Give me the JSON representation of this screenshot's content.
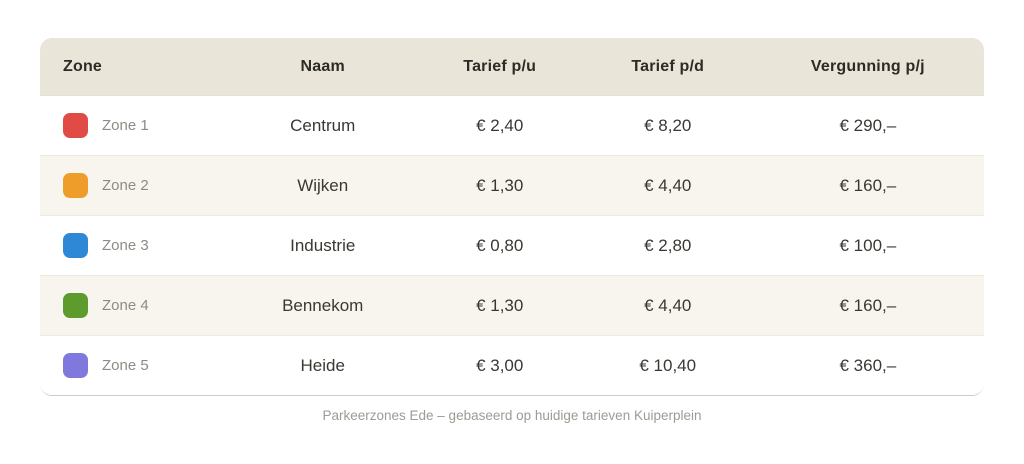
{
  "chart_data": {
    "type": "table",
    "columns": [
      "Zone",
      "Naam",
      "Tarief p/u",
      "Tarief p/d",
      "Vergunning p/j"
    ],
    "rows": [
      {
        "zone": "Zone 1",
        "color": "#e14b45",
        "naam": "Centrum",
        "tarief_pu": "€ 2,40",
        "tarief_pd": "€ 8,20",
        "vergunning_pj": "€ 290,–"
      },
      {
        "zone": "Zone 2",
        "color": "#ee9d2b",
        "naam": "Wijken",
        "tarief_pu": "€ 1,30",
        "tarief_pd": "€ 4,40",
        "vergunning_pj": "€ 160,–"
      },
      {
        "zone": "Zone 3",
        "color": "#2e88d5",
        "naam": "Industrie",
        "tarief_pu": "€ 0,80",
        "tarief_pd": "€ 2,80",
        "vergunning_pj": "€ 100,–"
      },
      {
        "zone": "Zone 4",
        "color": "#5d9b2d",
        "naam": "Bennekom",
        "tarief_pu": "€ 1,30",
        "tarief_pd": "€ 4,40",
        "vergunning_pj": "€ 160,–"
      },
      {
        "zone": "Zone 5",
        "color": "#8178de",
        "naam": "Heide",
        "tarief_pu": "€ 3,00",
        "tarief_pd": "€ 10,40",
        "vergunning_pj": "€ 360,–"
      }
    ],
    "caption": "Parkeerzones Ede – gebaseerd op huidige tarieven Kuiperplein",
    "layout_hints": {
      "header_bg": "#e9e5d9",
      "row_alt_bg": "#f7f5ee",
      "row_bg": "#ffffff",
      "header_text": "#2d2b26",
      "cell_text": "#3a3833",
      "zone_label_text": "#8d8b84",
      "caption_text": "#9d9b94"
    }
  }
}
